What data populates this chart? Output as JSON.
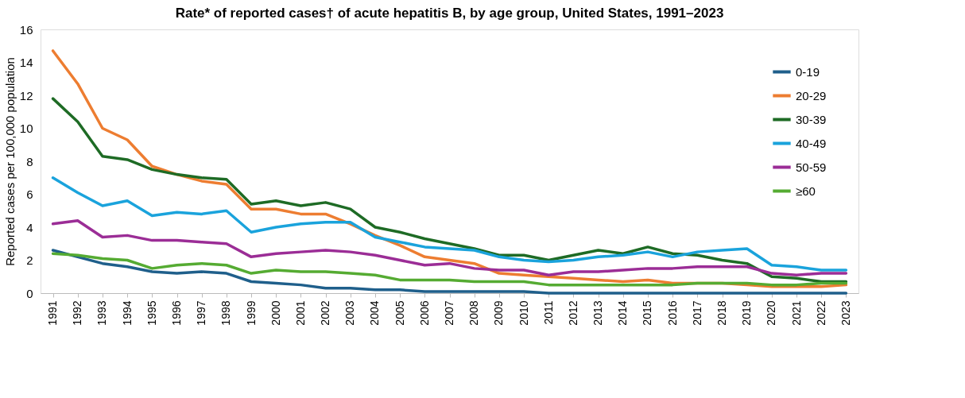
{
  "chart_data": {
    "type": "line",
    "title": "Rate* of reported cases† of acute hepatitis B, by age group, United States, 1991–2023",
    "ylabel": "Reported cases per 100,000 population",
    "categories": [
      "1991",
      "1992",
      "1993",
      "1994",
      "1995",
      "1996",
      "1997",
      "1998",
      "1999",
      "2000",
      "2001",
      "2002",
      "2003",
      "2004",
      "2005",
      "2006",
      "2007",
      "2008",
      "2009",
      "2010",
      "2011",
      "2012",
      "2013",
      "2014",
      "2015",
      "2016",
      "2017",
      "2018",
      "2019",
      "2020",
      "2021",
      "2022",
      "2023"
    ],
    "ylim": [
      0,
      16
    ],
    "yticks": [
      0,
      2,
      4,
      6,
      8,
      10,
      12,
      14,
      16
    ],
    "grid": false,
    "legend": "top right",
    "marker": "none",
    "line_style": "solid",
    "series": [
      {
        "name": "0-19",
        "color": "#1f5f8b",
        "values": [
          2.6,
          2.2,
          1.8,
          1.6,
          1.3,
          1.2,
          1.3,
          1.2,
          0.7,
          0.6,
          0.5,
          0.3,
          0.3,
          0.2,
          0.2,
          0.1,
          0.1,
          0.1,
          0.1,
          0.1,
          0,
          0,
          0,
          0,
          0,
          0,
          0,
          0,
          0,
          0,
          0,
          0,
          0
        ]
      },
      {
        "name": "20-29",
        "color": "#ed7d31",
        "values": [
          14.7,
          12.7,
          10.0,
          9.3,
          7.7,
          7.2,
          6.8,
          6.6,
          5.1,
          5.1,
          4.8,
          4.8,
          4.2,
          3.5,
          2.9,
          2.2,
          2.0,
          1.8,
          1.2,
          1.1,
          1.0,
          0.9,
          0.8,
          0.7,
          0.8,
          0.6,
          0.6,
          0.6,
          0.5,
          0.4,
          0.4,
          0.4,
          0.5
        ]
      },
      {
        "name": "30-39",
        "color": "#1e6b25",
        "values": [
          11.8,
          10.4,
          8.3,
          8.1,
          7.5,
          7.2,
          7.0,
          6.9,
          5.4,
          5.6,
          5.3,
          5.5,
          5.1,
          4.0,
          3.7,
          3.3,
          3.0,
          2.7,
          2.3,
          2.3,
          2.0,
          2.3,
          2.6,
          2.4,
          2.8,
          2.4,
          2.3,
          2.0,
          1.8,
          1.0,
          0.9,
          0.7,
          0.7
        ]
      },
      {
        "name": "40-49",
        "color": "#1aa3dc",
        "values": [
          7.0,
          6.1,
          5.3,
          5.6,
          4.7,
          4.9,
          4.8,
          5.0,
          3.7,
          4.0,
          4.2,
          4.3,
          4.3,
          3.4,
          3.1,
          2.8,
          2.7,
          2.6,
          2.2,
          2.0,
          1.9,
          2.0,
          2.2,
          2.3,
          2.5,
          2.2,
          2.5,
          2.6,
          2.7,
          1.7,
          1.6,
          1.4,
          1.4
        ]
      },
      {
        "name": "50-59",
        "color": "#9b2d96",
        "values": [
          4.2,
          4.4,
          3.4,
          3.5,
          3.2,
          3.2,
          3.1,
          3.0,
          2.2,
          2.4,
          2.5,
          2.6,
          2.5,
          2.3,
          2.0,
          1.7,
          1.8,
          1.5,
          1.4,
          1.4,
          1.1,
          1.3,
          1.3,
          1.4,
          1.5,
          1.5,
          1.6,
          1.6,
          1.6,
          1.2,
          1.1,
          1.2,
          1.2
        ]
      },
      {
        "name": "≥60",
        "color": "#55ab32",
        "values": [
          2.4,
          2.3,
          2.1,
          2.0,
          1.5,
          1.7,
          1.8,
          1.7,
          1.2,
          1.4,
          1.3,
          1.3,
          1.2,
          1.1,
          0.8,
          0.8,
          0.8,
          0.7,
          0.7,
          0.7,
          0.5,
          0.5,
          0.5,
          0.5,
          0.5,
          0.5,
          0.6,
          0.6,
          0.6,
          0.5,
          0.5,
          0.6,
          0.6
        ]
      }
    ]
  }
}
